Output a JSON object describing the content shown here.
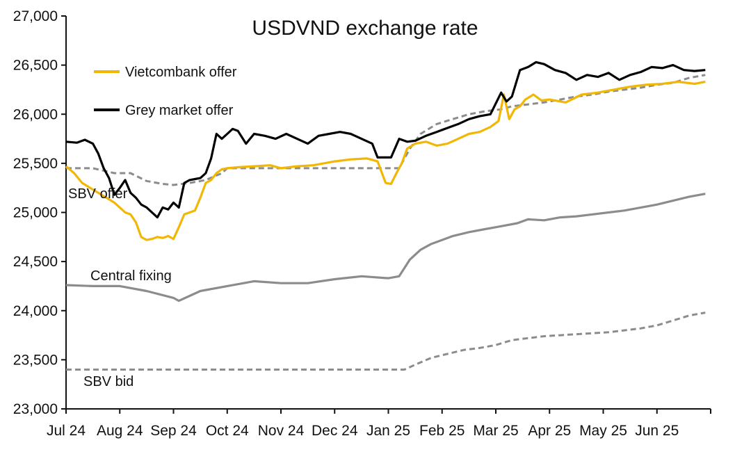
{
  "chart_data": {
    "type": "line",
    "title": "USDVND exchange rate",
    "xlabel": "",
    "ylabel": "",
    "ylim": [
      23000,
      27000
    ],
    "yticks": [
      "23,000",
      "23,500",
      "24,000",
      "24,500",
      "25,000",
      "25,500",
      "26,000",
      "26,500",
      "27,000"
    ],
    "ytick_values": [
      23000,
      23500,
      24000,
      24500,
      25000,
      25500,
      26000,
      26500,
      27000
    ],
    "xticks": [
      "Jul 24",
      "Aug 24",
      "Sep 24",
      "Oct 24",
      "Nov 24",
      "Dec 24",
      "Jan 25",
      "Feb 25",
      "Mar 25",
      "Apr 25",
      "May 25",
      "Jun 25"
    ],
    "xtick_values": [
      0,
      1,
      2,
      3,
      4,
      5,
      6,
      7,
      8,
      9,
      10,
      11
    ],
    "xlim": [
      0,
      12.0
    ],
    "grid": false,
    "legend": "top-left",
    "series": [
      {
        "name": "Vietcombank offer",
        "color": "#F2B705",
        "style": "solid",
        "legend": true,
        "x": [
          0,
          0.15,
          0.3,
          0.45,
          0.6,
          0.75,
          0.9,
          1.0,
          1.1,
          1.2,
          1.3,
          1.4,
          1.5,
          1.6,
          1.7,
          1.8,
          1.9,
          2.0,
          2.1,
          2.2,
          2.3,
          2.4,
          2.5,
          2.6,
          2.7,
          2.8,
          2.9,
          3.0,
          3.2,
          3.5,
          3.8,
          4.0,
          4.3,
          4.6,
          5.0,
          5.3,
          5.6,
          5.8,
          5.95,
          6.05,
          6.15,
          6.25,
          6.35,
          6.5,
          6.7,
          6.9,
          7.1,
          7.3,
          7.5,
          7.7,
          7.9,
          8.05,
          8.15,
          8.25,
          8.35,
          8.45,
          8.55,
          8.7,
          8.85,
          9.0,
          9.3,
          9.6,
          9.9,
          10.2,
          10.5,
          10.8,
          11.1,
          11.4,
          11.7,
          11.9
        ],
        "values": [
          25470,
          25400,
          25300,
          25250,
          25200,
          25150,
          25100,
          25050,
          25000,
          24980,
          24900,
          24750,
          24720,
          24730,
          24750,
          24740,
          24760,
          24730,
          24850,
          24980,
          25000,
          25020,
          25150,
          25300,
          25330,
          25400,
          25440,
          25450,
          25460,
          25470,
          25480,
          25450,
          25470,
          25480,
          25520,
          25540,
          25550,
          25520,
          25300,
          25290,
          25400,
          25500,
          25650,
          25700,
          25720,
          25680,
          25700,
          25750,
          25800,
          25820,
          25870,
          25930,
          26200,
          25950,
          26050,
          26080,
          26150,
          26200,
          26140,
          26150,
          26120,
          26200,
          26220,
          26250,
          26280,
          26300,
          26310,
          26330,
          26310,
          26330
        ]
      },
      {
        "name": "Grey market offer",
        "color": "#000000",
        "style": "solid",
        "legend": true,
        "x": [
          0,
          0.2,
          0.35,
          0.5,
          0.6,
          0.7,
          0.8,
          0.9,
          1.0,
          1.1,
          1.2,
          1.3,
          1.4,
          1.5,
          1.6,
          1.7,
          1.8,
          1.9,
          2.0,
          2.1,
          2.2,
          2.3,
          2.4,
          2.5,
          2.6,
          2.7,
          2.8,
          2.9,
          3.0,
          3.1,
          3.2,
          3.35,
          3.5,
          3.7,
          3.9,
          4.1,
          4.3,
          4.5,
          4.7,
          4.9,
          5.1,
          5.3,
          5.5,
          5.7,
          5.8,
          5.95,
          6.05,
          6.2,
          6.35,
          6.5,
          6.7,
          6.9,
          7.1,
          7.3,
          7.5,
          7.7,
          7.9,
          8.1,
          8.2,
          8.3,
          8.45,
          8.6,
          8.75,
          8.9,
          9.1,
          9.3,
          9.5,
          9.7,
          9.9,
          10.1,
          10.3,
          10.5,
          10.7,
          10.9,
          11.1,
          11.3,
          11.5,
          11.7,
          11.9
        ],
        "values": [
          25720,
          25710,
          25740,
          25700,
          25600,
          25450,
          25350,
          25180,
          25250,
          25330,
          25200,
          25150,
          25080,
          25050,
          25000,
          24950,
          25050,
          25030,
          25100,
          25050,
          25300,
          25330,
          25340,
          25350,
          25400,
          25550,
          25800,
          25750,
          25800,
          25850,
          25830,
          25700,
          25800,
          25780,
          25750,
          25800,
          25750,
          25700,
          25780,
          25800,
          25820,
          25800,
          25750,
          25700,
          25560,
          25560,
          25560,
          25750,
          25720,
          25730,
          25780,
          25820,
          25860,
          25900,
          25950,
          25980,
          26000,
          26220,
          26130,
          26180,
          26450,
          26480,
          26530,
          26510,
          26450,
          26420,
          26350,
          26400,
          26380,
          26420,
          26350,
          26400,
          26430,
          26480,
          26470,
          26500,
          26450,
          26440,
          26450
        ]
      },
      {
        "name": "SBV offer",
        "color": "#8C8C8C",
        "style": "dashed",
        "legend": false,
        "x": [
          0,
          0.5,
          0.9,
          1.2,
          1.5,
          1.8,
          2.0,
          2.3,
          2.6,
          2.9,
          3.0,
          3.5,
          4.0,
          4.5,
          5.0,
          5.5,
          6.0,
          6.2,
          6.4,
          6.6,
          6.9,
          7.2,
          7.5,
          7.8,
          8.1,
          8.3,
          8.6,
          8.9,
          9.2,
          9.5,
          9.8,
          10.1,
          10.4,
          10.7,
          11.0,
          11.3,
          11.6,
          11.9
        ],
        "values": [
          25450,
          25450,
          25400,
          25400,
          25320,
          25290,
          25280,
          25300,
          25330,
          25400,
          25450,
          25450,
          25450,
          25450,
          25450,
          25450,
          25450,
          25450,
          25650,
          25800,
          25900,
          25950,
          26000,
          26030,
          26050,
          26080,
          26100,
          26120,
          26150,
          26180,
          26200,
          26230,
          26250,
          26270,
          26300,
          26320,
          26370,
          26400
        ]
      },
      {
        "name": "Central fixing",
        "color": "#8C8C8C",
        "style": "solid",
        "legend": false,
        "x": [
          0,
          0.5,
          1.0,
          1.5,
          2.0,
          2.1,
          2.5,
          3.0,
          3.5,
          4.0,
          4.5,
          5.0,
          5.5,
          6.0,
          6.2,
          6.4,
          6.6,
          6.8,
          7.0,
          7.2,
          7.5,
          7.8,
          8.1,
          8.4,
          8.6,
          8.9,
          9.2,
          9.5,
          9.8,
          10.1,
          10.4,
          10.7,
          11.0,
          11.3,
          11.6,
          11.9
        ],
        "values": [
          24260,
          24250,
          24250,
          24200,
          24130,
          24100,
          24200,
          24250,
          24300,
          24280,
          24280,
          24320,
          24350,
          24330,
          24350,
          24520,
          24620,
          24680,
          24720,
          24760,
          24800,
          24830,
          24860,
          24890,
          24930,
          24920,
          24950,
          24960,
          24980,
          25000,
          25020,
          25050,
          25080,
          25120,
          25160,
          25190
        ]
      },
      {
        "name": "SBV bid",
        "color": "#8C8C8C",
        "style": "dashed",
        "legend": false,
        "x": [
          0,
          1.0,
          2.0,
          3.0,
          4.0,
          5.0,
          6.0,
          6.3,
          6.5,
          6.8,
          7.1,
          7.4,
          7.7,
          8.0,
          8.3,
          8.6,
          8.9,
          9.2,
          9.5,
          9.8,
          10.1,
          10.4,
          10.7,
          11.0,
          11.3,
          11.6,
          11.9
        ],
        "values": [
          23400,
          23400,
          23400,
          23400,
          23400,
          23400,
          23400,
          23400,
          23450,
          23520,
          23560,
          23600,
          23620,
          23650,
          23700,
          23720,
          23740,
          23750,
          23760,
          23770,
          23780,
          23800,
          23820,
          23850,
          23900,
          23950,
          23980
        ]
      }
    ],
    "annotations": [
      {
        "text": "SBV offer",
        "x": 0.0,
        "y": 25200
      },
      {
        "text": "Central fixing",
        "x": 0.35,
        "y": 24350
      },
      {
        "text": "SBV bid",
        "x": 0.35,
        "y": 23250
      }
    ]
  }
}
